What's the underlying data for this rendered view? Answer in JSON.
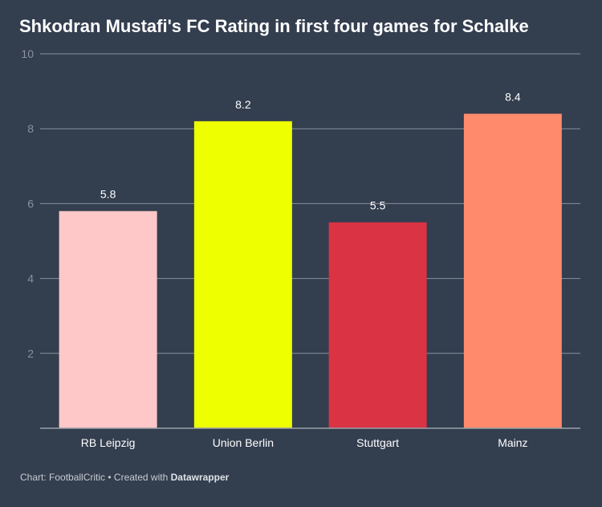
{
  "title": "Shkodran Mustafi's FC Rating in first four games for Schalke",
  "footer": {
    "source": "Chart: FootballCritic • Created with ",
    "tool": "Datawrapper"
  },
  "chart_data": {
    "type": "bar",
    "title": "Shkodran Mustafi's FC Rating in first four games for Schalke",
    "categories": [
      "RB Leipzig",
      "Union Berlin",
      "Stuttgart",
      "Mainz"
    ],
    "values": [
      5.8,
      8.2,
      5.5,
      8.4
    ],
    "colors": [
      "#ffc8c8",
      "#eeff00",
      "#d93344",
      "#ff8a6c"
    ],
    "ylim": [
      0,
      10
    ],
    "yticks": [
      2,
      4,
      6,
      8,
      10
    ],
    "grid": true,
    "xlabel": "",
    "ylabel": ""
  }
}
